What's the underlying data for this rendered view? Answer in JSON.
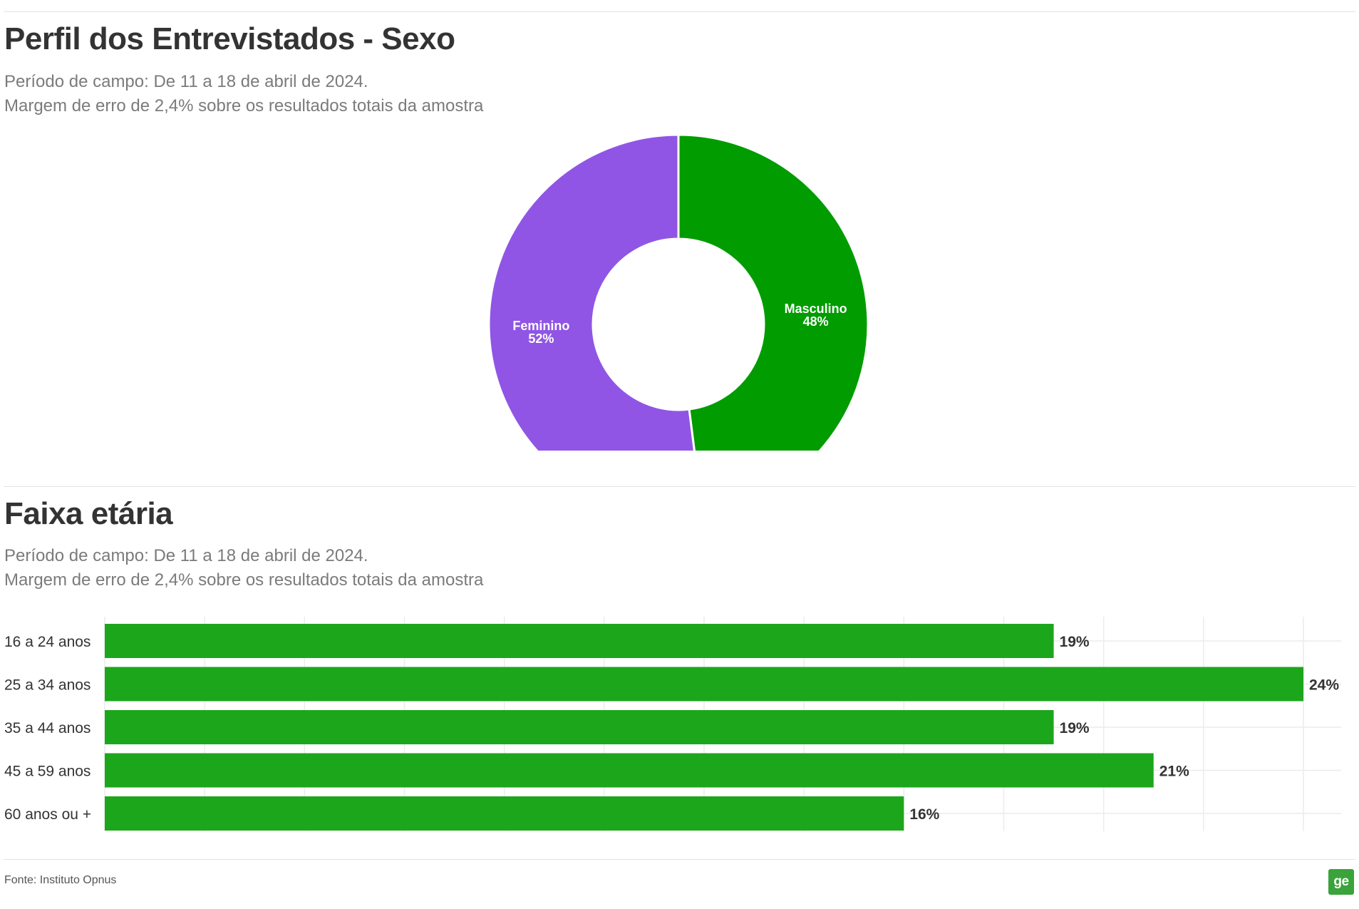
{
  "colors": {
    "female": "#9055e5",
    "male": "#009c00",
    "bar": "#1ca61c",
    "logo": "#3ba33b"
  },
  "chart_data": [
    {
      "type": "pie",
      "variant": "donut",
      "title": "Perfil dos Entrevistados - Sexo",
      "subtitle_lines": [
        "Período de campo: De 11 a 18 de abril de 2024.",
        "Margem de erro de 2,4% sobre os resultados totais da amostra"
      ],
      "slices": [
        {
          "label": "Masculino",
          "value": 48,
          "value_label": "48%",
          "color": "#009c00"
        },
        {
          "label": "Feminino",
          "value": 52,
          "value_label": "52%",
          "color": "#9055e5"
        }
      ]
    },
    {
      "type": "bar",
      "orientation": "horizontal",
      "title": "Faixa etária",
      "subtitle_lines": [
        "Período de campo: De 11 a 18 de abril de 2024.",
        "Margem de erro de 2,4% sobre os resultados totais da amostra"
      ],
      "categories": [
        "16 a 24 anos",
        "25 a 34 anos",
        "35 a 44 anos",
        "45 a 59 anos",
        "60 anos ou +"
      ],
      "values": [
        19,
        24,
        19,
        21,
        16
      ],
      "value_labels": [
        "19%",
        "24%",
        "19%",
        "21%",
        "16%"
      ],
      "xlim": [
        0,
        24
      ],
      "grid": true,
      "color": "#1ca61c"
    }
  ],
  "footer": {
    "source": "Fonte: Instituto Opnus",
    "logo_text": "ge"
  }
}
